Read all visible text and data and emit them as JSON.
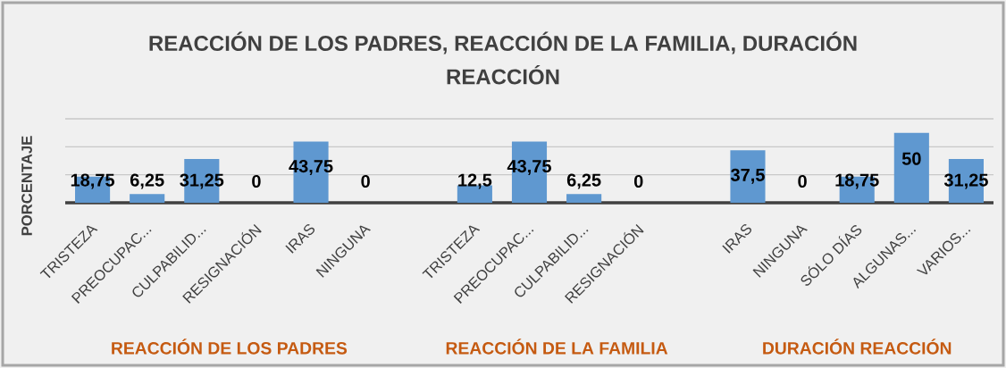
{
  "chart_data": {
    "type": "bar",
    "title": "REACCIÓN DE LOS PADRES,  REACCIÓN DE LA FAMILIA, DURACIÓN REACCIÓN",
    "ylabel": "PORCENTAJE",
    "categories": [
      "TRISTEZA",
      "PREOCUPAC...",
      "CULPABILID...",
      "RESIGNACIÓN",
      "IRAS",
      "NINGUNA",
      null,
      "TRISTEZA",
      "PREOCUPAC...",
      "CULPABILID...",
      "RESIGNACIÓN",
      null,
      "IRAS",
      "NINGUNA",
      "SÓLO DÍAS",
      "ALGUNAS...",
      "VARIOS..."
    ],
    "values": [
      18.75,
      6.25,
      31.25,
      0,
      43.75,
      0,
      null,
      12.5,
      43.75,
      6.25,
      0,
      null,
      37.5,
      0,
      18.75,
      50,
      31.25
    ],
    "value_labels": [
      "18,75",
      "6,25",
      "31,25",
      "0",
      "43,75",
      "0",
      null,
      "12,5",
      "43,75",
      "6,25",
      "0",
      null,
      "37,5",
      "0",
      "18,75",
      "50",
      "31,25"
    ],
    "color": "#5f98d0",
    "ylim": [
      0,
      60
    ],
    "yticks": [
      {
        "value": 0,
        "label": null
      },
      {
        "value": 20,
        "label": null
      },
      {
        "value": 40,
        "label": null
      },
      {
        "value": 60,
        "label": null
      }
    ],
    "grid": "y",
    "tick_labels": "x",
    "annotations": [
      "REACCIÓN DE LOS PADRES",
      "REACCIÓN DE LA FAMILIA",
      "DURACIÓN REACCIÓN"
    ]
  }
}
